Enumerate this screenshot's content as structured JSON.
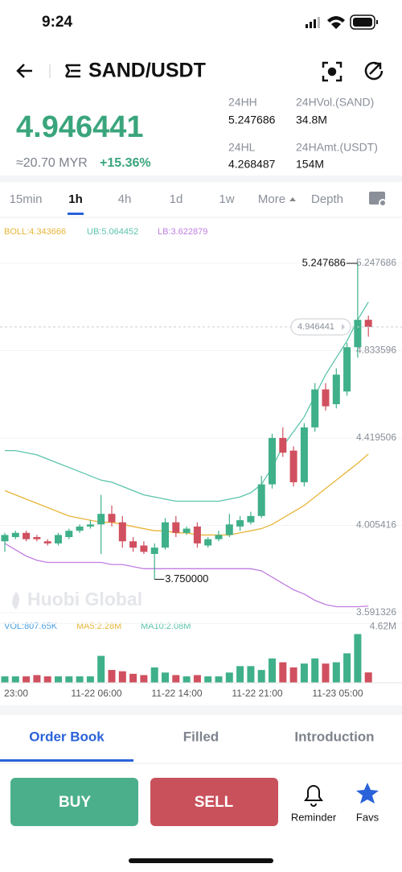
{
  "status_bar": {
    "time": "9:24"
  },
  "header": {
    "pair": "SAND/USDT"
  },
  "ticker": {
    "price": "4.946441",
    "fiat": "≈20.70 MYR",
    "change": "+15.36%",
    "stats": [
      {
        "label": "24HH",
        "value": "5.247686"
      },
      {
        "label": "24HVol.(SAND)",
        "value": "34.8M"
      },
      {
        "label": "24HL",
        "value": "4.268487"
      },
      {
        "label": "24HAmt.(USDT)",
        "value": "154M"
      }
    ]
  },
  "intervals": [
    "15min",
    "1h",
    "4h",
    "1d",
    "1w",
    "More",
    "Depth"
  ],
  "chart_data": {
    "type": "candlestick",
    "indicators": [
      {
        "text": "BOLL:4.343666",
        "color": "#e8b53a"
      },
      {
        "text": "UB:5.064452",
        "color": "#5cc4ac"
      },
      {
        "text": "LB:3.622879",
        "color": "#c07ee0"
      }
    ],
    "open": [
      3.93,
      3.95,
      3.97,
      3.95,
      3.93,
      3.92,
      3.95,
      3.98,
      4.0,
      4.01,
      4.06,
      4.02,
      3.93,
      3.91,
      3.87,
      3.9,
      4.02,
      3.97,
      4.0,
      3.91,
      3.94,
      3.96,
      4.0,
      4.02,
      4.05,
      4.2,
      4.42,
      4.36,
      4.21,
      4.47,
      4.65,
      4.58,
      4.64,
      4.85,
      4.98
    ],
    "high": [
      3.97,
      3.98,
      3.98,
      3.96,
      3.94,
      3.97,
      3.99,
      4.01,
      4.03,
      4.15,
      4.1,
      4.05,
      3.95,
      3.93,
      3.92,
      4.04,
      4.05,
      4.0,
      4.02,
      3.95,
      3.98,
      4.06,
      4.05,
      4.07,
      4.24,
      4.44,
      4.47,
      4.38,
      4.49,
      4.68,
      4.68,
      4.75,
      4.87,
      5.247686,
      5.0
    ],
    "low": [
      3.88,
      3.94,
      3.93,
      3.93,
      3.91,
      3.91,
      3.94,
      3.97,
      3.99,
      3.87,
      4.0,
      3.9,
      3.88,
      3.87,
      3.75,
      3.89,
      3.95,
      3.96,
      3.9,
      3.9,
      3.93,
      3.95,
      3.98,
      4.01,
      4.04,
      4.18,
      4.33,
      4.19,
      4.19,
      4.45,
      4.55,
      4.56,
      4.62,
      4.8,
      4.9
    ],
    "close": [
      3.96,
      3.97,
      3.94,
      3.94,
      3.92,
      3.96,
      3.98,
      4.0,
      4.01,
      4.06,
      4.02,
      3.93,
      3.9,
      3.88,
      3.9,
      4.02,
      3.97,
      3.99,
      3.92,
      3.94,
      3.96,
      4.01,
      4.03,
      4.05,
      4.2,
      4.42,
      4.35,
      4.21,
      4.47,
      4.65,
      4.57,
      4.72,
      4.85,
      4.98,
      4.946441
    ],
    "up_color": "#3fb089",
    "down_color": "#d0505f",
    "series": [
      {
        "color": "#e8b53a",
        "values": [
          4.17,
          4.15,
          4.13,
          4.11,
          4.09,
          4.07,
          4.05,
          4.04,
          4.03,
          4.02,
          4.02,
          4.01,
          4.0,
          3.99,
          3.98,
          3.98,
          3.97,
          3.97,
          3.96,
          3.96,
          3.96,
          3.96,
          3.97,
          3.98,
          3.99,
          4.01,
          4.04,
          4.07,
          4.1,
          4.14,
          4.18,
          4.22,
          4.26,
          4.3,
          4.343666
        ]
      },
      {
        "color": "#5cc4ac",
        "values": [
          4.36,
          4.36,
          4.35,
          4.34,
          4.32,
          4.3,
          4.28,
          4.26,
          4.24,
          4.22,
          4.21,
          4.19,
          4.17,
          4.15,
          4.14,
          4.13,
          4.12,
          4.12,
          4.12,
          4.12,
          4.12,
          4.13,
          4.14,
          4.16,
          4.2,
          4.28,
          4.38,
          4.45,
          4.52,
          4.62,
          4.72,
          4.8,
          4.88,
          4.98,
          5.064452
        ]
      },
      {
        "color": "#c07ee0",
        "values": [
          3.92,
          3.89,
          3.86,
          3.84,
          3.83,
          3.83,
          3.83,
          3.83,
          3.83,
          3.83,
          3.82,
          3.82,
          3.81,
          3.8,
          3.8,
          3.8,
          3.8,
          3.8,
          3.8,
          3.8,
          3.8,
          3.8,
          3.8,
          3.8,
          3.79,
          3.76,
          3.73,
          3.7,
          3.68,
          3.65,
          3.63,
          3.62,
          3.62,
          3.62,
          3.622879
        ]
      }
    ],
    "ylim": [
      3.557,
      5.37
    ],
    "yticks": [
      5.247686,
      4.833596,
      4.419506,
      4.005416,
      3.591326
    ],
    "grid": true,
    "annotations": {
      "high": "5.247686",
      "low": "3.750000",
      "last": "4.946441"
    },
    "watermark": "Huobi Global",
    "volume": {
      "legend": [
        {
          "text": "VOL:807.65K",
          "color": "#4a9fe0"
        },
        {
          "text": "MA5:2.28M",
          "color": "#e8b53a"
        },
        {
          "text": "MA10:2.08M",
          "color": "#5cc4ac"
        }
      ],
      "values": [
        0.5,
        0.5,
        0.5,
        0.6,
        0.5,
        0.5,
        0.5,
        0.5,
        0.5,
        2.1,
        1.0,
        0.9,
        0.7,
        0.6,
        1.2,
        0.8,
        0.6,
        0.5,
        0.6,
        0.5,
        0.5,
        0.8,
        1.3,
        1.3,
        1.0,
        1.9,
        1.6,
        1.2,
        1.5,
        1.9,
        1.5,
        1.6,
        2.3,
        3.8,
        0.80765
      ],
      "ylim": [
        0,
        4.9
      ],
      "yticks": [
        {
          "value": 4.62,
          "label": "4.62M"
        }
      ]
    },
    "x_labels": [
      "23:00",
      "11-22 06:00",
      "11-22 14:00",
      "11-22 21:00",
      "11-23 05:00"
    ]
  },
  "tabs": [
    "Order Book",
    "Filled",
    "Introduction"
  ],
  "actions": {
    "buy": "BUY",
    "sell": "SELL",
    "reminder": "Reminder",
    "favs": "Favs"
  }
}
